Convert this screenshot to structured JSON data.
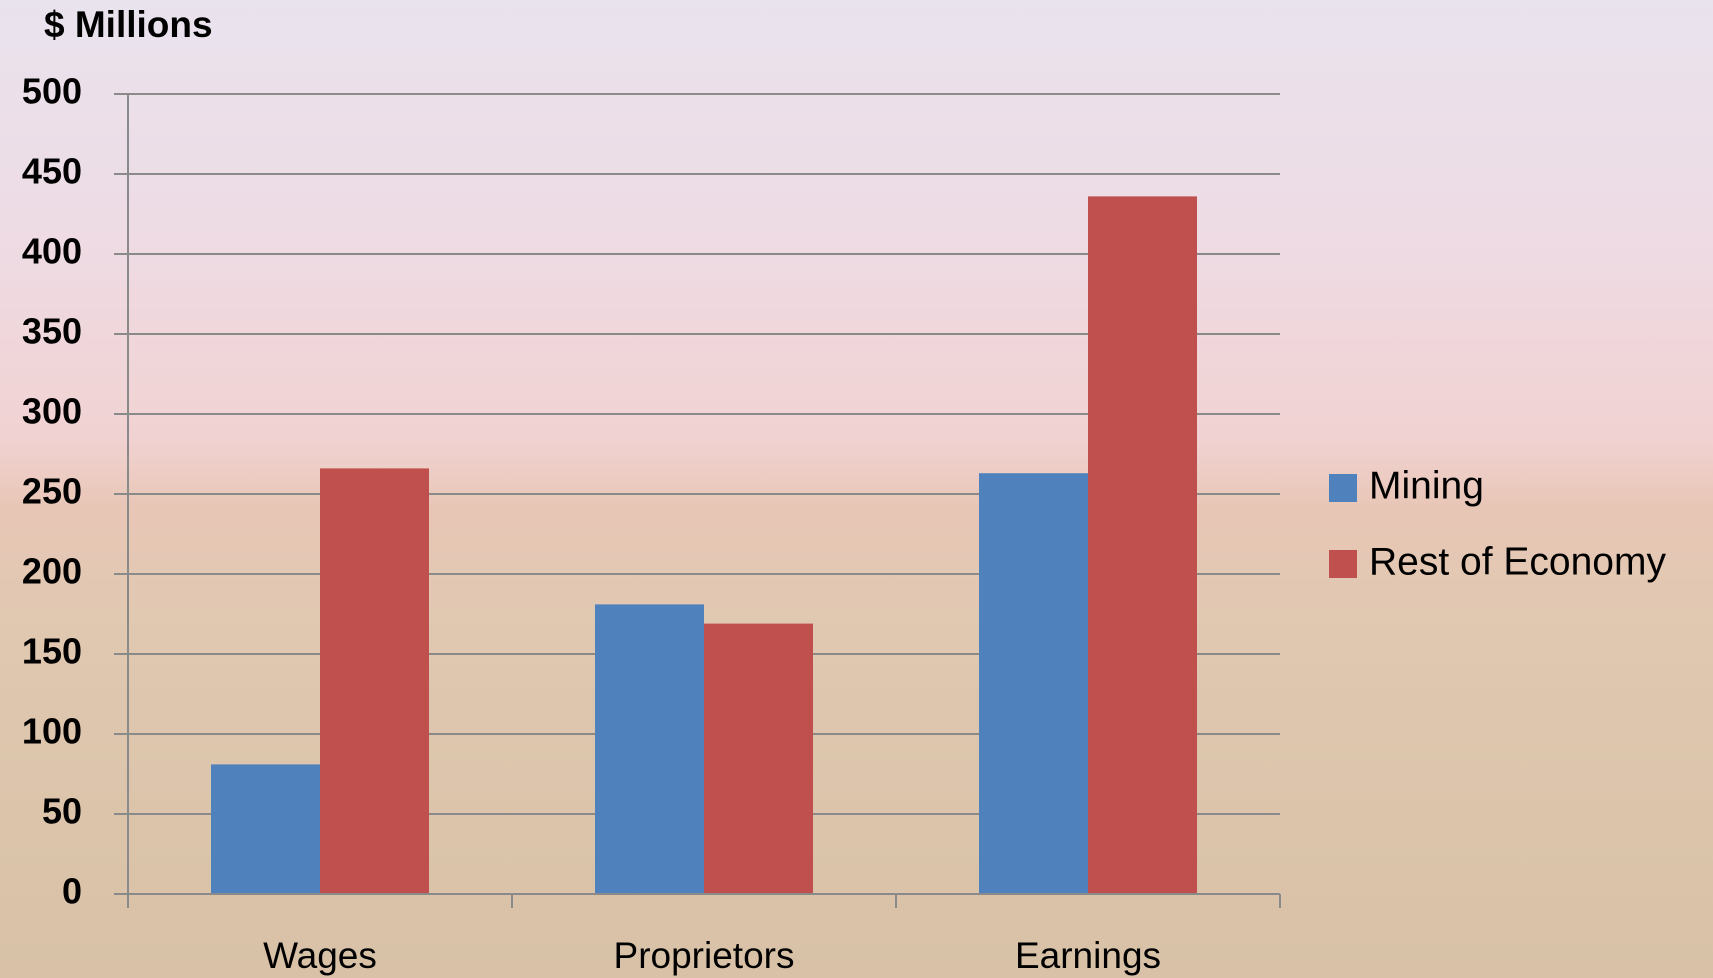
{
  "chart_data": {
    "type": "bar",
    "title": "$ Millions",
    "categories": [
      "Wages",
      "Proprietors",
      "Earnings"
    ],
    "series": [
      {
        "name": "Mining",
        "color": "#4f81bd",
        "values": [
          81,
          181,
          263
        ]
      },
      {
        "name": "Rest of Economy",
        "color": "#c0504d",
        "values": [
          266,
          169,
          436
        ]
      }
    ],
    "ylim": [
      0,
      500
    ],
    "yticks": [
      0,
      50,
      100,
      150,
      200,
      250,
      300,
      350,
      400,
      450,
      500
    ],
    "grid": true,
    "legend": "right"
  }
}
